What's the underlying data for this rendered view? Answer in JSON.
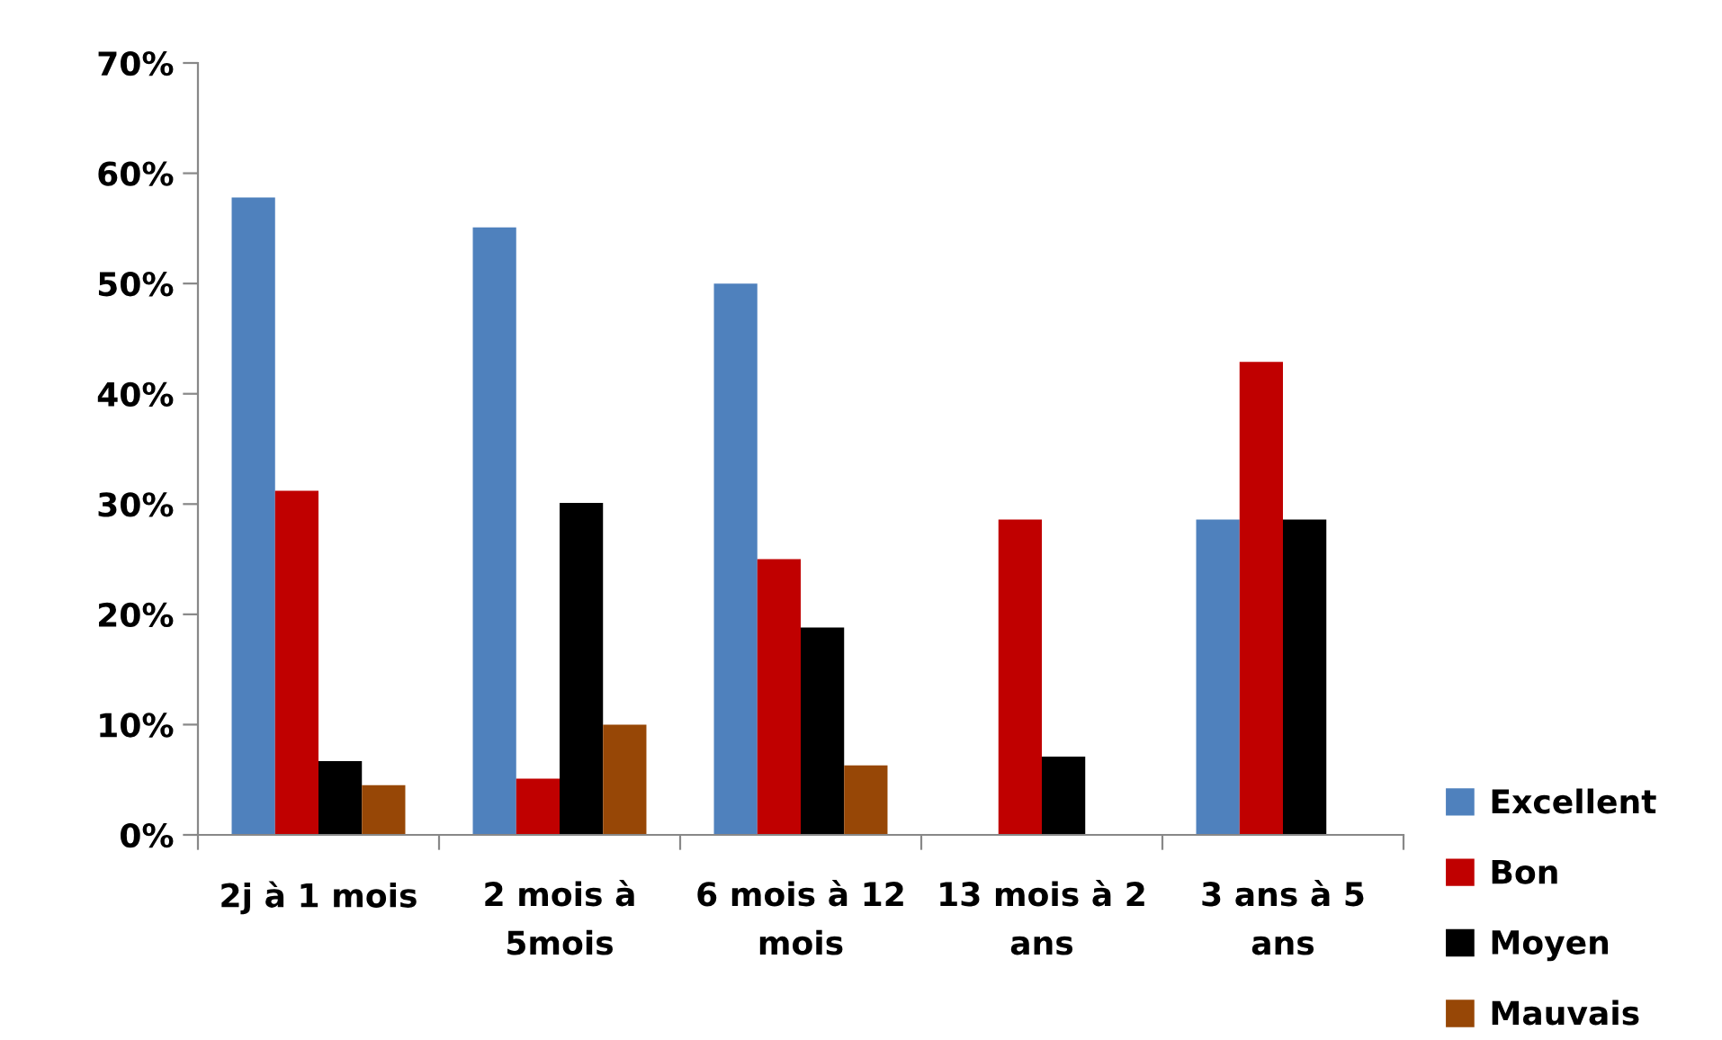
{
  "chart_data": {
    "type": "bar",
    "categories": [
      "2j à 1 mois",
      "2 mois à\n5mois",
      "6 mois à 12\nmois",
      "13 mois à 2\nans",
      "3 ans à 5\nans"
    ],
    "series": [
      {
        "name": "Excellent",
        "color": "#4f81bd",
        "values": [
          57.8,
          55.1,
          50.0,
          0,
          28.6
        ]
      },
      {
        "name": "Bon",
        "color": "#c00000",
        "values": [
          31.2,
          5.1,
          25.0,
          28.6,
          42.9
        ]
      },
      {
        "name": "Moyen",
        "color": "#000000",
        "values": [
          6.7,
          30.1,
          18.8,
          7.1,
          28.6
        ]
      },
      {
        "name": "Mauvais",
        "color": "#974706",
        "values": [
          4.5,
          10.0,
          6.3,
          0,
          0
        ]
      }
    ],
    "ylim": [
      0,
      70
    ],
    "yticks": [
      {
        "value": 0,
        "label": "0%"
      },
      {
        "value": 10,
        "label": "10%"
      },
      {
        "value": 20,
        "label": "20%"
      },
      {
        "value": 30,
        "label": "30%"
      },
      {
        "value": 40,
        "label": "40%"
      },
      {
        "value": 50,
        "label": "50%"
      },
      {
        "value": 60,
        "label": "60%"
      },
      {
        "value": 70,
        "label": "70%"
      }
    ],
    "grid": false,
    "legend": "bottom right"
  }
}
